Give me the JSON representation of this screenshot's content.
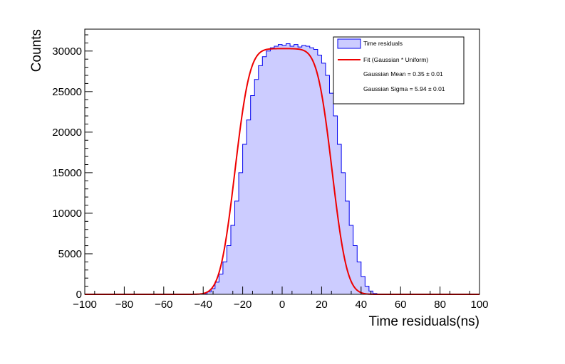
{
  "chart_data": {
    "type": "histogram",
    "xlabel": "Time residuals(ns)",
    "ylabel": "Counts",
    "xlim": [
      -100,
      100
    ],
    "ylim": [
      0,
      32700
    ],
    "x_ticks": [
      -100,
      -80,
      -60,
      -40,
      -20,
      0,
      20,
      40,
      60,
      80,
      100
    ],
    "y_ticks": [
      0,
      5000,
      10000,
      15000,
      20000,
      25000,
      30000
    ],
    "x_tick_labels": [
      "−100",
      "−80",
      "−60",
      "−40",
      "−20",
      "0",
      "20",
      "40",
      "60",
      "80",
      "100"
    ],
    "y_tick_labels": [
      "0",
      "5000",
      "10000",
      "15000",
      "20000",
      "25000",
      "30000"
    ],
    "bin_width": 2,
    "histogram": {
      "name": "Time residuals",
      "fill_color": "#ccccff",
      "line_color": "#0000ee",
      "bin_edges_start": -100,
      "counts": [
        0,
        0,
        0,
        0,
        0,
        0,
        0,
        0,
        0,
        0,
        0,
        0,
        0,
        0,
        0,
        0,
        0,
        0,
        0,
        0,
        0,
        0,
        0,
        0,
        0,
        0,
        0,
        0,
        0,
        0,
        50,
        300,
        700,
        1500,
        2500,
        4000,
        6000,
        8500,
        11500,
        15000,
        18500,
        21500,
        24500,
        26500,
        28200,
        29300,
        30000,
        30400,
        30600,
        30800,
        30700,
        30900,
        30600,
        30800,
        30500,
        30700,
        30600,
        30400,
        30200,
        29500,
        28500,
        27000,
        24800,
        22000,
        18500,
        15000,
        11500,
        8500,
        6000,
        4000,
        2200,
        1000,
        400,
        100,
        30,
        0,
        0,
        0,
        0,
        0,
        0,
        0,
        0,
        0,
        0,
        0,
        0,
        0,
        0,
        0,
        0,
        0,
        0,
        0,
        0,
        0,
        0,
        0,
        0,
        0
      ]
    },
    "fit": {
      "name": "Fit (Gaussian * Uniform)",
      "color": "#ee0000",
      "amplitude": 30300,
      "uniform_low": -24.3,
      "uniform_high": 25.0,
      "gauss_mean": 0.35,
      "gauss_sigma": 5.94
    },
    "legend": {
      "placement": "top-right",
      "entries": [
        {
          "label": "Time residuals",
          "kind": "box"
        },
        {
          "label": "Fit (Gaussian * Uniform)",
          "kind": "line"
        },
        {
          "label": "Gaussian Mean = 0.35 ± 0.01",
          "kind": "text"
        },
        {
          "label": "Gaussian Sigma = 5.94 ± 0.01",
          "kind": "text"
        }
      ]
    }
  }
}
